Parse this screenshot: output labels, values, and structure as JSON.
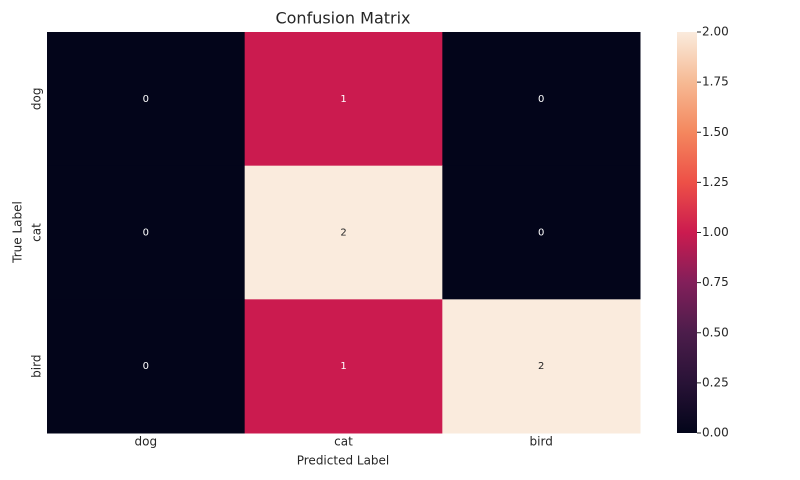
{
  "chart_data": {
    "type": "heatmap",
    "title": "Confusion Matrix",
    "x_label": "Predicted Label",
    "y_label": "True Label",
    "x_categories": [
      "dog",
      "cat",
      "bird"
    ],
    "y_categories": [
      "dog",
      "cat",
      "bird"
    ],
    "values": [
      [
        0,
        1,
        0
      ],
      [
        0,
        2,
        0
      ],
      [
        0,
        1,
        2
      ]
    ],
    "colormap": "rocket",
    "clim": [
      0,
      2
    ],
    "cticks": [
      {
        "value": 0,
        "label": "0.00"
      },
      {
        "value": 0.25,
        "label": "0.25"
      },
      {
        "value": 0.5,
        "label": "0.50"
      },
      {
        "value": 0.75,
        "label": "0.75"
      },
      {
        "value": 1,
        "label": "1.00"
      },
      {
        "value": 1.25,
        "label": "1.25"
      },
      {
        "value": 1.5,
        "label": "1.50"
      },
      {
        "value": 1.75,
        "label": "1.75"
      },
      {
        "value": 2,
        "label": "2.00"
      }
    ]
  }
}
